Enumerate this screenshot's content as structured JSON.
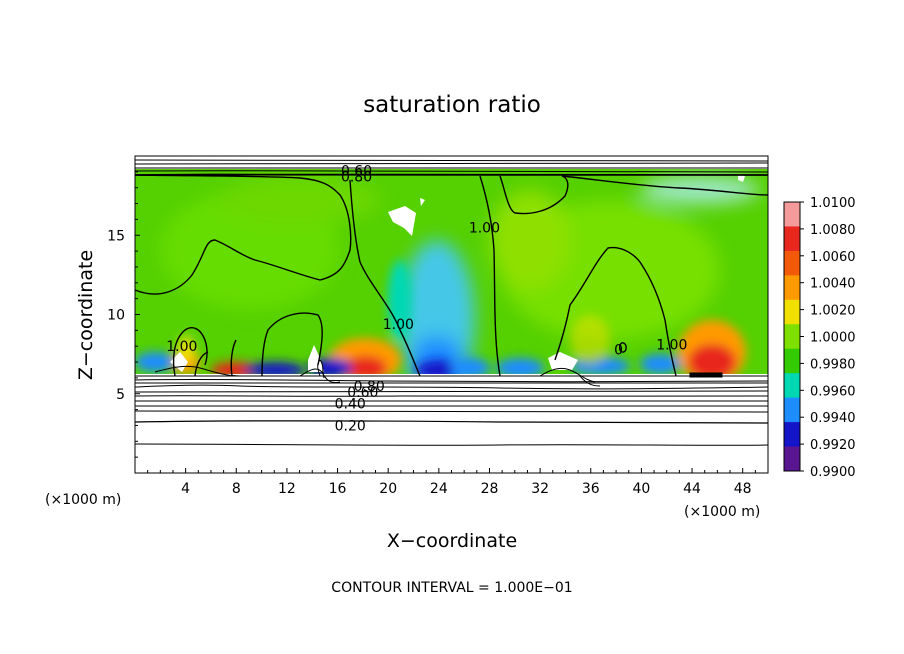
{
  "chart_data": {
    "type": "heatmap",
    "title": "saturation ratio",
    "xlabel": "X−coordinate",
    "ylabel": "Z−coordinate",
    "x_unit": "(×1000 m)",
    "z_unit": "(×1000 m)",
    "xlim": [
      0,
      50
    ],
    "ylim": [
      0,
      20
    ],
    "x_ticks": [
      4,
      8,
      12,
      16,
      20,
      24,
      28,
      32,
      36,
      40,
      44,
      48
    ],
    "y_ticks": [
      5,
      10,
      15
    ],
    "contour_interval_text": "CONTOUR INTERVAL = 1.000E−01",
    "contour_labels": [
      {
        "text": "0.60",
        "x": 17.5,
        "z": 19.1
      },
      {
        "text": "0.80",
        "x": 17.5,
        "z": 18.7
      },
      {
        "text": "1.00",
        "x": 27.6,
        "z": 15.5
      },
      {
        "text": "1.00",
        "x": 20.8,
        "z": 9.4
      },
      {
        "text": "1.00",
        "x": 3.7,
        "z": 8.0
      },
      {
        "text": "1.00",
        "x": 42.4,
        "z": 8.1
      },
      {
        "text": "0",
        "x": 38.2,
        "z": 7.8
      },
      {
        "text": "0.80",
        "x": 18.5,
        "z": 5.5
      },
      {
        "text": "0.60",
        "x": 18.0,
        "z": 5.1
      },
      {
        "text": "0.40",
        "x": 17.0,
        "z": 4.4
      },
      {
        "text": "0.20",
        "x": 17.0,
        "z": 3.0
      }
    ],
    "colorbar": {
      "labels": [
        "1.0100",
        "1.0080",
        "1.0060",
        "1.0040",
        "1.0020",
        "1.0000",
        "0.9980",
        "0.9960",
        "0.9940",
        "0.9920",
        "0.9900"
      ],
      "colors": [
        "#f59a9a",
        "#e8281e",
        "#f25a0a",
        "#ff9a00",
        "#f0e000",
        "#7ee000",
        "#33cc00",
        "#00d8b4",
        "#1c8cff",
        "#1414c8",
        "#5a1690"
      ]
    },
    "highlights": [
      {
        "x": 19.5,
        "z": 7.3,
        "value": 1.006
      },
      {
        "x": 45.0,
        "z": 7.4,
        "value": 1.008
      },
      {
        "x": 7.5,
        "z": 6.6,
        "value": 1.004
      },
      {
        "x": 4.0,
        "z": 7.0,
        "value": 1.004
      },
      {
        "x": 24.0,
        "z": 8.0,
        "value": 0.996
      },
      {
        "x": 16.5,
        "z": 6.5,
        "value": 0.992
      },
      {
        "x": 25.5,
        "z": 6.5,
        "value": 0.992
      },
      {
        "x": 29.5,
        "z": 6.5,
        "value": 0.994
      },
      {
        "x": 11.5,
        "z": 6.5,
        "value": 0.992
      }
    ]
  }
}
